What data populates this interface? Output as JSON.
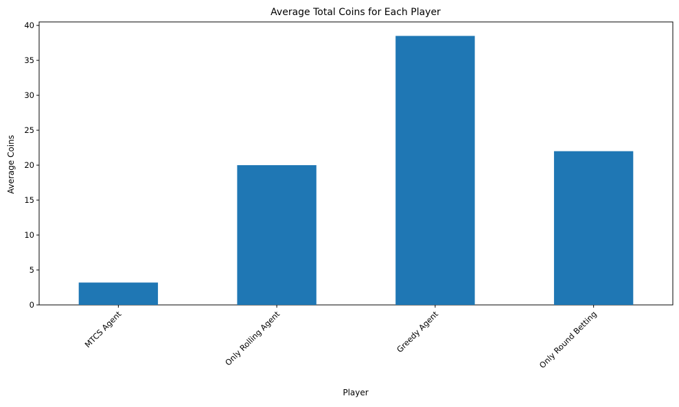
{
  "chart_data": {
    "type": "bar",
    "title": "Average Total Coins for Each Player",
    "xlabel": "Player",
    "ylabel": "Average Coins",
    "categories": [
      "MTCS Agent",
      "Only Rolling Agent",
      "Greedy Agent",
      "Only Round Betting"
    ],
    "values": [
      3.2,
      20.0,
      38.5,
      22.0
    ],
    "ylim": [
      0,
      40.5
    ],
    "yticks": [
      0,
      5,
      10,
      15,
      20,
      25,
      30,
      35,
      40
    ],
    "grid": false,
    "legend": "none",
    "bar_color": "#1f77b4",
    "xtick_rotation_deg": 45
  }
}
